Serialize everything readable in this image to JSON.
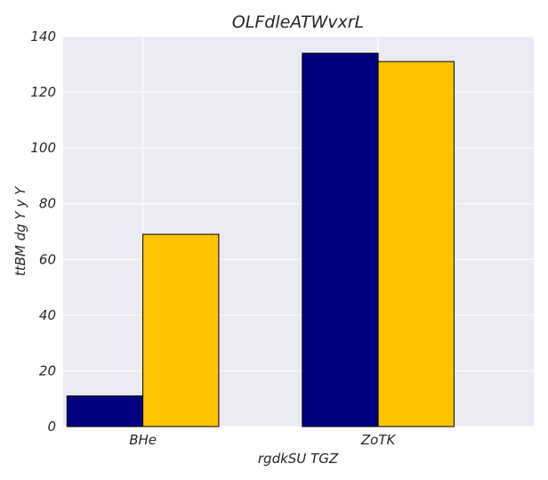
{
  "chart_data": {
    "type": "bar",
    "title": "OLFdleATWvxrL",
    "xlabel": "rgdkSU TGZ",
    "ylabel": "ttBM dg Y y Y",
    "categories": [
      "BHe",
      "ZoTK"
    ],
    "series": [
      {
        "values": [
          11,
          134
        ],
        "color": "#000080"
      },
      {
        "values": [
          69,
          131
        ],
        "color": "#FFC300"
      }
    ],
    "ylim": [
      0,
      140
    ],
    "yticks": [
      0,
      20,
      40,
      60,
      80,
      100,
      120,
      140
    ],
    "grid": true,
    "legend": "none"
  },
  "colors": {
    "plot_background": "#EAEAF2",
    "grid": "#FFFFFF",
    "bar_edge": "#000000"
  }
}
